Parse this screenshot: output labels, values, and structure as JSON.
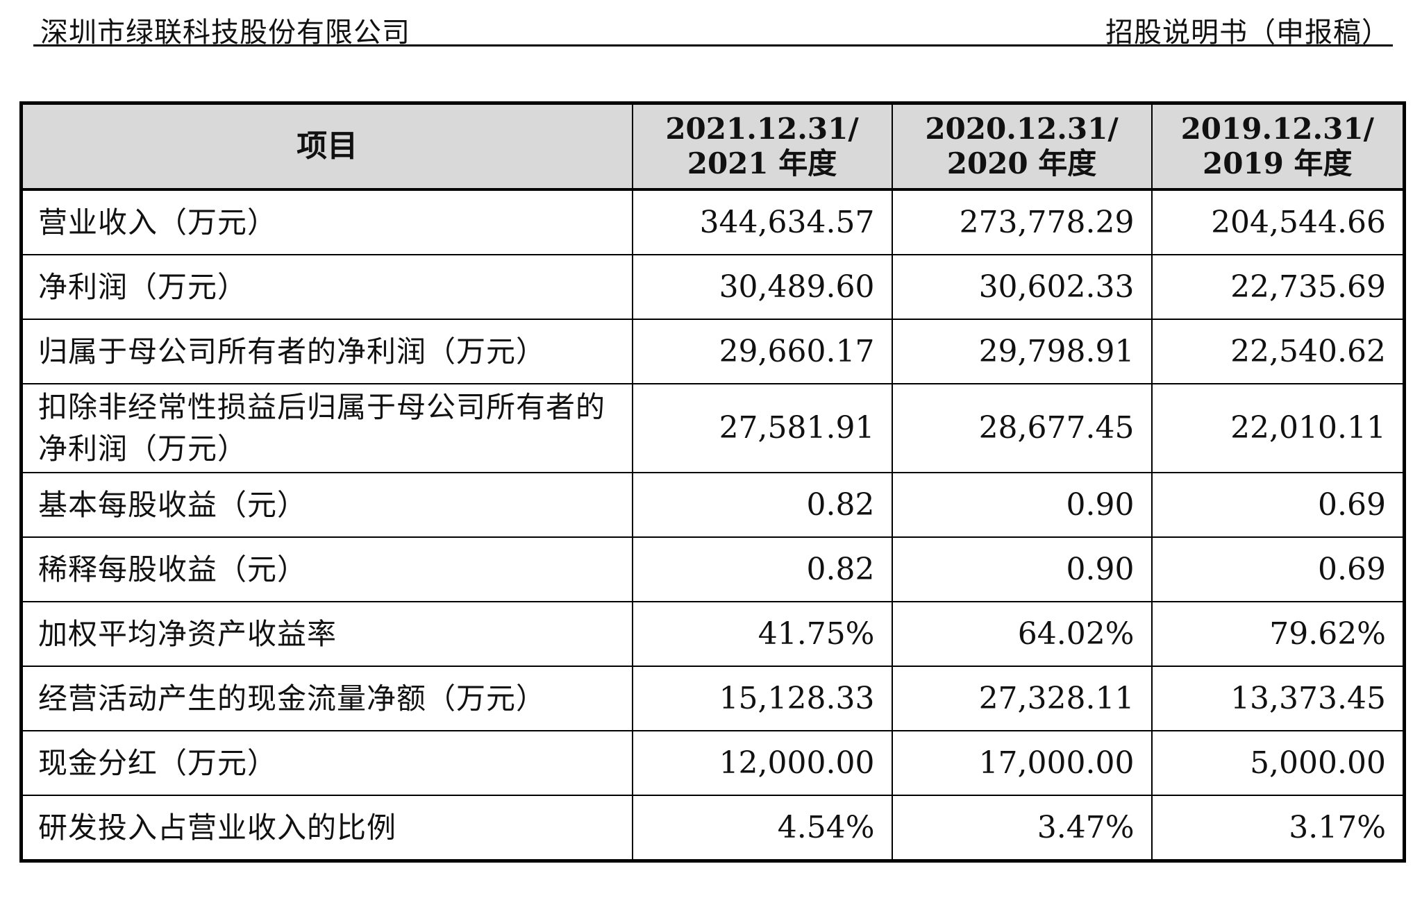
{
  "header": {
    "company": "深圳市绿联科技股份有限公司",
    "document_type": "招股说明书（申报稿）"
  },
  "table": {
    "columns": [
      {
        "line1": "项目",
        "line2": ""
      },
      {
        "line1": "2021.12.31/",
        "line2": "2021 年度"
      },
      {
        "line1": "2020.12.31/",
        "line2": "2020 年度"
      },
      {
        "line1": "2019.12.31/",
        "line2": "2019 年度"
      }
    ],
    "rows": [
      {
        "label": "营业收入（万元）",
        "values": [
          "344,634.57",
          "273,778.29",
          "204,544.66"
        ]
      },
      {
        "label": "净利润（万元）",
        "values": [
          "30,489.60",
          "30,602.33",
          "22,735.69"
        ]
      },
      {
        "label": "归属于母公司所有者的净利润（万元）",
        "values": [
          "29,660.17",
          "29,798.91",
          "22,540.62"
        ]
      },
      {
        "label": "扣除非经常性损益后归属于母公司所有者的净利润（万元）",
        "values": [
          "27,581.91",
          "28,677.45",
          "22,010.11"
        ]
      },
      {
        "label": "基本每股收益（元）",
        "values": [
          "0.82",
          "0.90",
          "0.69"
        ]
      },
      {
        "label": "稀释每股收益（元）",
        "values": [
          "0.82",
          "0.90",
          "0.69"
        ]
      },
      {
        "label": "加权平均净资产收益率",
        "values": [
          "41.75%",
          "64.02%",
          "79.62%"
        ]
      },
      {
        "label": "经营活动产生的现金流量净额（万元）",
        "values": [
          "15,128.33",
          "27,328.11",
          "13,373.45"
        ]
      },
      {
        "label": "现金分红（万元）",
        "values": [
          "12,000.00",
          "17,000.00",
          "5,000.00"
        ]
      },
      {
        "label": "研发投入占营业收入的比例",
        "values": [
          "4.54%",
          "3.47%",
          "3.17%"
        ]
      }
    ]
  }
}
